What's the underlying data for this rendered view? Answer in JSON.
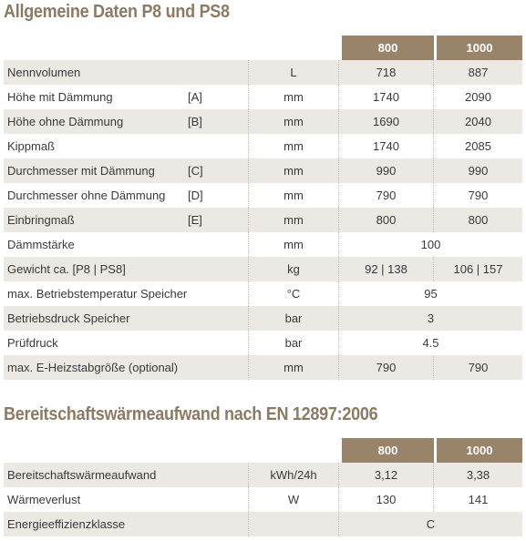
{
  "section1": {
    "title": "Allgemeine Daten P8 und PS8",
    "headers": [
      "800",
      "1000"
    ],
    "rows": [
      {
        "label": "Nennvolumen",
        "code": "",
        "unit": "L",
        "v800": "718",
        "v1000": "887"
      },
      {
        "label": "Höhe mit Dämmung",
        "code": "[A]",
        "unit": "mm",
        "v800": "1740",
        "v1000": "2090"
      },
      {
        "label": "Höhe ohne Dämmung",
        "code": "[B]",
        "unit": "mm",
        "v800": "1690",
        "v1000": "2040"
      },
      {
        "label": "Kippmaß",
        "code": "",
        "unit": "mm",
        "v800": "1740",
        "v1000": "2085"
      },
      {
        "label": "Durchmesser mit Dämmung",
        "code": "[C]",
        "unit": "mm",
        "v800": "990",
        "v1000": "990"
      },
      {
        "label": "Durchmesser ohne Dämmung",
        "code": "[D]",
        "unit": "mm",
        "v800": "790",
        "v1000": "790"
      },
      {
        "label": "Einbringmaß",
        "code": "[E]",
        "unit": "mm",
        "v800": "800",
        "v1000": "800"
      },
      {
        "label": "Dämmstärke",
        "code": "",
        "unit": "mm",
        "both": "100"
      },
      {
        "label": "Gewicht ca. [P8 | PS8]",
        "code": "",
        "unit": "kg",
        "v800": "92 | 138",
        "v1000": "106 | 157"
      },
      {
        "label": "max. Betriebstemperatur Speicher",
        "code": "",
        "unit": "°C",
        "both": "95"
      },
      {
        "label": "Betriebsdruck Speicher",
        "code": "",
        "unit": "bar",
        "both": "3"
      },
      {
        "label": "Prüfdruck",
        "code": "",
        "unit": "bar",
        "both": "4.5"
      },
      {
        "label": "max. E-Heizstabgröße (optional)",
        "code": "",
        "unit": "mm",
        "v800": "790",
        "v1000": "790"
      }
    ]
  },
  "section2": {
    "title": "Bereitschaftswärmeaufwand nach EN 12897:2006",
    "headers": [
      "800",
      "1000"
    ],
    "rows": [
      {
        "label": "Bereitschaftswärmeaufwand",
        "unit": "kWh/24h",
        "v800": "3,12",
        "v1000": "3,38"
      },
      {
        "label": "Wärmeverlust",
        "unit": "W",
        "v800": "130",
        "v1000": "141"
      },
      {
        "label": "Energieeffizienzklasse",
        "unit": "",
        "both": "C"
      }
    ]
  },
  "colors": {
    "title": "#8c7a62",
    "header_bg": "#9a8469",
    "row_shade": "#ece8e3"
  }
}
